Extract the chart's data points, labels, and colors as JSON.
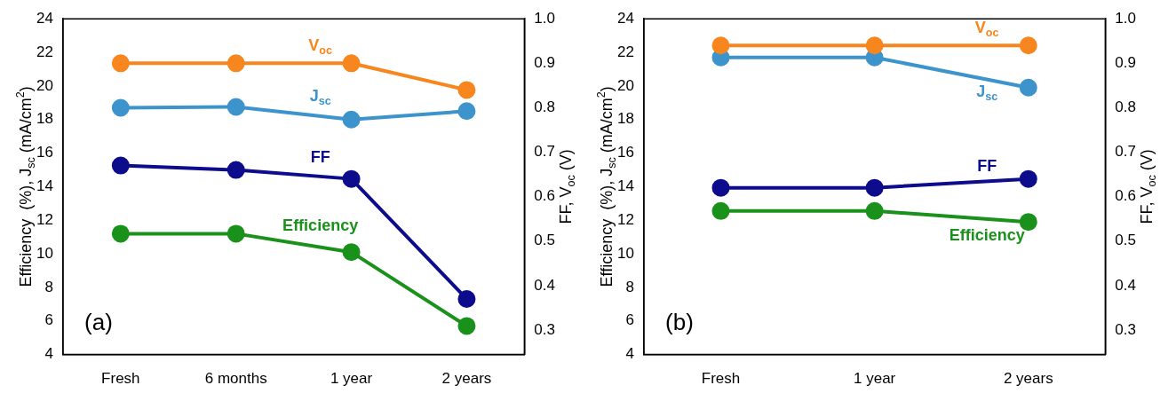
{
  "chart_data": [
    {
      "type": "line",
      "categories": [
        "Fresh",
        "6 months",
        "1 year",
        "2 years"
      ],
      "ylabel": "Efficiency  (%), J$_{sc}$ (mA/cm$^{2}$)",
      "y2label": "FF, V$_{oc}$ (V)",
      "ylim": [
        4,
        24
      ],
      "yticks": [
        4,
        6,
        8,
        10,
        12,
        14,
        16,
        18,
        20,
        22,
        24
      ],
      "y2lim": [
        0.245,
        1.0
      ],
      "y2ticks": [
        0.3,
        0.4,
        0.5,
        0.6,
        0.7,
        0.8,
        0.9,
        {
          "value": 1,
          "label": "1.0"
        }
      ],
      "marker": "circle",
      "line_style": "solid",
      "grid": false,
      "legend": false,
      "annotations": [
        "(a)"
      ],
      "series": [
        {
          "name": "V$_{oc}$",
          "color": "#f7861e",
          "axis": "y2",
          "values": [
            0.9,
            0.9,
            0.9,
            0.84
          ]
        },
        {
          "name": "J$_{sc}$",
          "color": "#3d94cc",
          "values": [
            18.7,
            18.75,
            18.0,
            18.5
          ]
        },
        {
          "name": "FF",
          "color": "#0c0c8c",
          "axis": "y2",
          "values": [
            0.67,
            0.66,
            0.64,
            0.37
          ]
        },
        {
          "name": "Efficiency",
          "color": "#1a911a",
          "values": [
            11.2,
            11.2,
            10.1,
            5.7
          ]
        }
      ]
    },
    {
      "type": "line",
      "categories": [
        "Fresh",
        "1 year",
        "2 years"
      ],
      "ylabel": "Efficiency  (%), J$_{sc}$ (mA/cm$^{2}$)",
      "y2label": "FF, V$_{oc}$ (V)",
      "ylim": [
        4,
        24
      ],
      "yticks": [
        4,
        6,
        8,
        10,
        12,
        14,
        16,
        18,
        20,
        22,
        24
      ],
      "y2lim": [
        0.245,
        1.0
      ],
      "y2ticks": [
        0.3,
        0.4,
        0.5,
        0.6,
        0.7,
        0.8,
        0.9,
        {
          "value": 1,
          "label": "1.0"
        }
      ],
      "marker": "circle",
      "line_style": "solid",
      "grid": false,
      "legend": false,
      "annotations": [
        "(b)"
      ],
      "series": [
        {
          "name": "V$_{oc}$",
          "color": "#f7861e",
          "axis": "y2",
          "values": [
            0.94,
            0.94,
            0.94
          ]
        },
        {
          "name": "J$_{sc}$",
          "color": "#3d94cc",
          "values": [
            21.7,
            21.7,
            19.9
          ]
        },
        {
          "name": "FF",
          "color": "#0c0c8c",
          "axis": "y2",
          "values": [
            0.62,
            0.62,
            0.64
          ]
        },
        {
          "name": "Efficiency",
          "color": "#1a911a",
          "values": [
            12.55,
            12.55,
            11.9
          ]
        }
      ]
    }
  ]
}
